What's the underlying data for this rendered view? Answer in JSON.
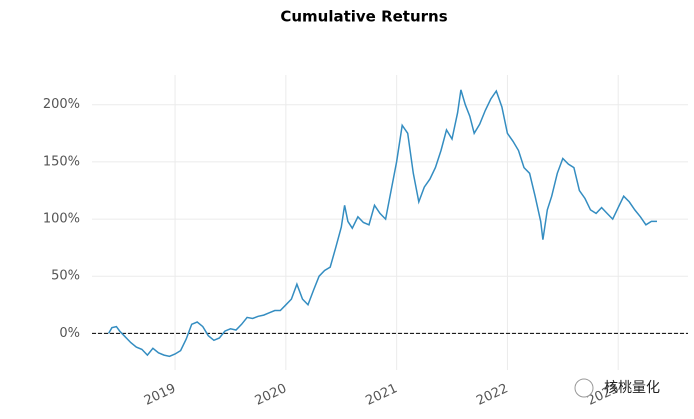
{
  "chart_data": {
    "type": "line",
    "title": "Cumulative Returns",
    "x": [
      2018.4,
      2018.43,
      2018.47,
      2018.5,
      2018.55,
      2018.6,
      2018.65,
      2018.7,
      2018.75,
      2018.8,
      2018.85,
      2018.9,
      2018.95,
      2019.0,
      2019.05,
      2019.1,
      2019.15,
      2019.2,
      2019.25,
      2019.3,
      2019.35,
      2019.4,
      2019.45,
      2019.5,
      2019.55,
      2019.6,
      2019.65,
      2019.7,
      2019.75,
      2019.8,
      2019.85,
      2019.9,
      2019.95,
      2020.0,
      2020.05,
      2020.1,
      2020.15,
      2020.2,
      2020.25,
      2020.3,
      2020.35,
      2020.4,
      2020.45,
      2020.5,
      2020.53,
      2020.56,
      2020.6,
      2020.65,
      2020.7,
      2020.75,
      2020.8,
      2020.85,
      2020.9,
      2020.95,
      2021.0,
      2021.05,
      2021.1,
      2021.15,
      2021.2,
      2021.25,
      2021.3,
      2021.35,
      2021.4,
      2021.45,
      2021.5,
      2021.55,
      2021.58,
      2021.62,
      2021.66,
      2021.7,
      2021.75,
      2021.8,
      2021.85,
      2021.9,
      2021.95,
      2022.0,
      2022.05,
      2022.1,
      2022.15,
      2022.2,
      2022.25,
      2022.3,
      2022.32,
      2022.36,
      2022.4,
      2022.45,
      2022.5,
      2022.55,
      2022.6,
      2022.65,
      2022.7,
      2022.75,
      2022.8,
      2022.85,
      2022.9,
      2022.95,
      2023.0,
      2023.05,
      2023.1,
      2023.15,
      2023.2,
      2023.25,
      2023.3,
      2023.35
    ],
    "series": [
      {
        "name": "Cumulative Returns",
        "color": "#348dc1",
        "values": [
          0,
          5,
          6,
          2,
          -3,
          -8,
          -12,
          -14,
          -19,
          -13,
          -17,
          -19,
          -20,
          -18,
          -15,
          -5,
          8,
          10,
          6,
          -2,
          -6,
          -4,
          2,
          4,
          3,
          8,
          14,
          13,
          15,
          16,
          18,
          20,
          20,
          25,
          30,
          43,
          30,
          25,
          38,
          50,
          55,
          58,
          75,
          93,
          112,
          98,
          92,
          102,
          97,
          95,
          112,
          105,
          100,
          125,
          150,
          182,
          175,
          140,
          115,
          128,
          135,
          145,
          160,
          178,
          170,
          193,
          213,
          200,
          190,
          175,
          183,
          195,
          205,
          212,
          198,
          175,
          168,
          160,
          145,
          140,
          120,
          98,
          82,
          108,
          120,
          140,
          153,
          148,
          145,
          125,
          118,
          108,
          105,
          110,
          105,
          100,
          110,
          120,
          115,
          108,
          102,
          95,
          98,
          98
        ]
      }
    ],
    "xlim": [
      2018.25,
      2023.63
    ],
    "xticks": [
      2019,
      2020,
      2021,
      2022,
      2023
    ],
    "ylim": [
      -32,
      226
    ],
    "yticks": [
      {
        "value": 0,
        "label": "0%"
      },
      {
        "value": 50,
        "label": "50%"
      },
      {
        "value": 100,
        "label": "100%"
      },
      {
        "value": 150,
        "label": "150%"
      },
      {
        "value": 200,
        "label": "200%"
      }
    ],
    "grid": true,
    "zero_line": true,
    "watermark": "核桃量化"
  }
}
